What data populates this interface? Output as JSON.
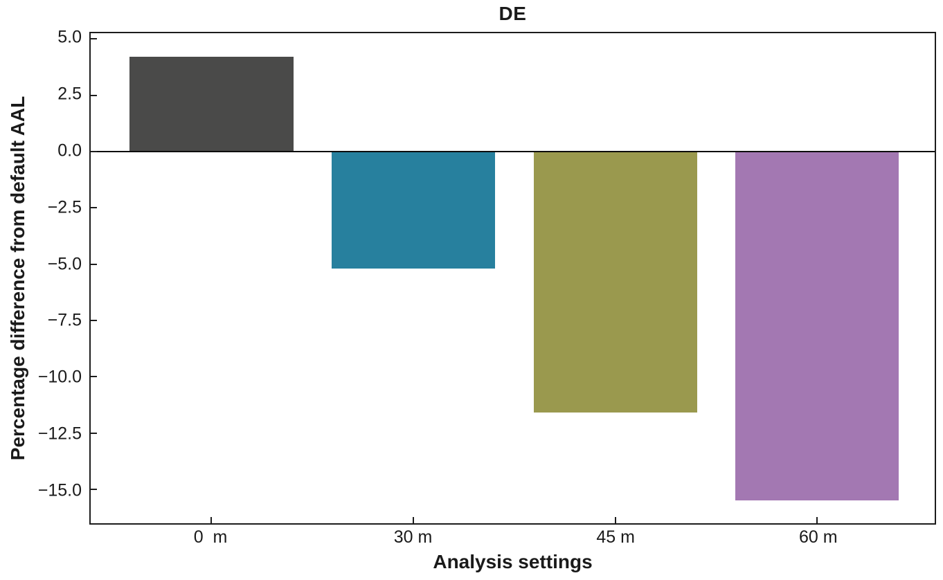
{
  "chart_data": {
    "type": "bar",
    "title": "DE",
    "xlabel": "Analysis settings",
    "ylabel": "Percentage difference from default AAL",
    "categories": [
      "0  m",
      "30 m",
      "45 m",
      "60 m"
    ],
    "values": [
      4.2,
      -5.2,
      -11.6,
      -15.5
    ],
    "bar_colors": [
      "#4a4a49",
      "#27809e",
      "#9a994e",
      "#a378b2"
    ],
    "ylim": [
      -16.5,
      5.25
    ],
    "yticks": [
      5.0,
      2.5,
      0.0,
      -2.5,
      -5.0,
      -7.5,
      -10.0,
      -12.5,
      -15.0
    ],
    "ytick_labels": [
      "5.0",
      "2.5",
      "0.0",
      "−2.5",
      "−5.0",
      "−7.5",
      "−10.0",
      "−12.5",
      "−15.0"
    ],
    "grid": false,
    "legend": null,
    "zero_line": true,
    "box_spines": true,
    "tick_direction": "in",
    "layout": {
      "x_centers_pct": [
        14.31,
        38.23,
        62.16,
        86.08
      ],
      "bar_width_pct": 19.38
    }
  }
}
